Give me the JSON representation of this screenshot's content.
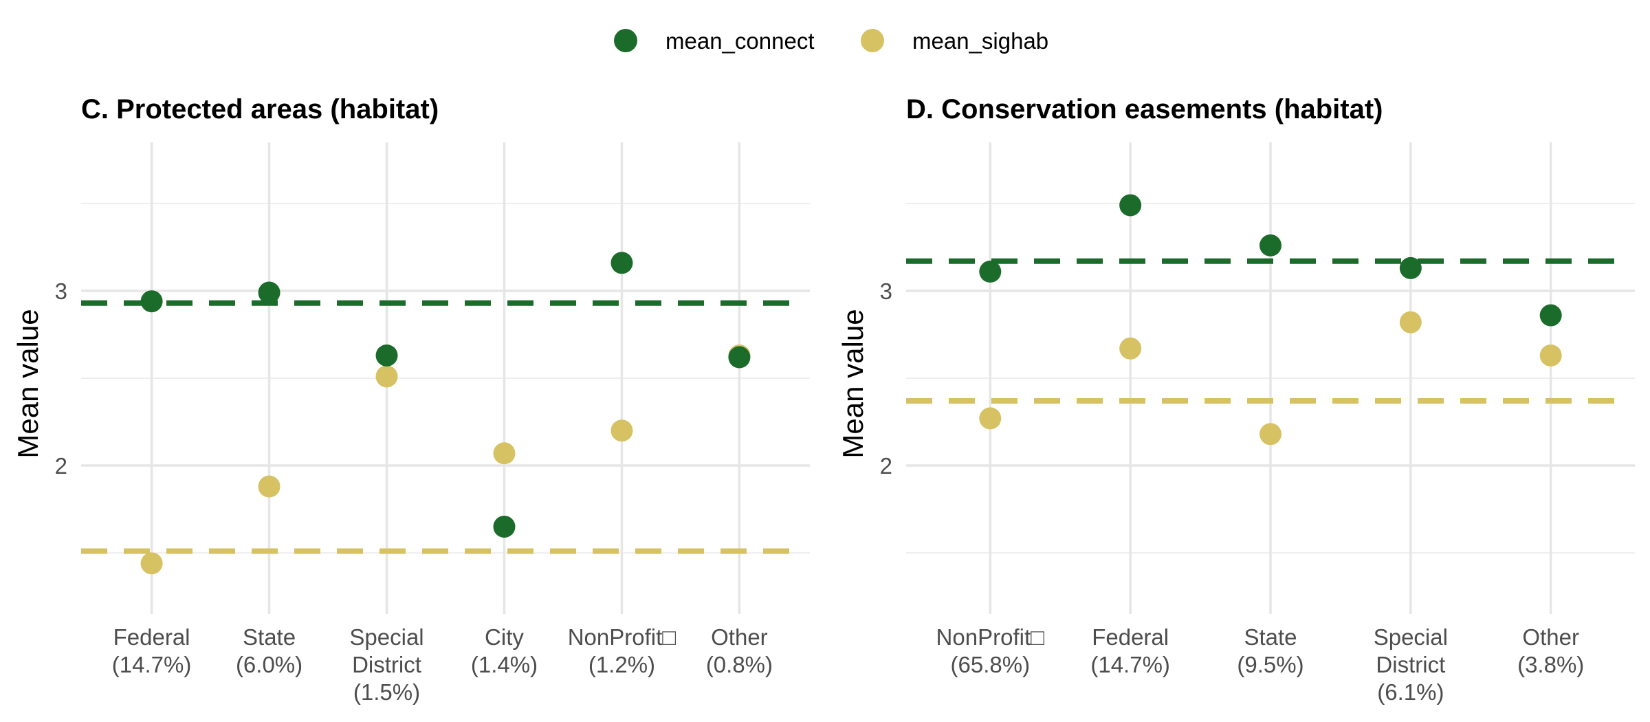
{
  "colors": {
    "mean_connect": "#1b6b2a",
    "mean_sighab": "#d6c263"
  },
  "legend": {
    "items": [
      {
        "key": "mean_connect",
        "label": "mean_connect"
      },
      {
        "key": "mean_sighab",
        "label": "mean_sighab"
      }
    ],
    "placement": "top"
  },
  "chart_data": [
    {
      "type": "scatter",
      "title": "C. Protected areas (habitat)",
      "ylabel": "Mean value",
      "xlabel": "",
      "ylim": [
        1.15,
        3.85
      ],
      "yticks": [
        2,
        3
      ],
      "grid": true,
      "categories": [
        [
          "Federal",
          "(14.7%)"
        ],
        [
          "State",
          "(6.0%)"
        ],
        [
          "Special",
          "District",
          "(1.5%)"
        ],
        [
          "City",
          "(1.4%)"
        ],
        [
          "NonProfit□",
          "(1.2%)"
        ],
        [
          "Other",
          "(0.8%)"
        ]
      ],
      "series": [
        {
          "name": "mean_sighab",
          "key": "mean_sighab",
          "values": [
            1.44,
            1.88,
            2.51,
            2.07,
            2.2,
            2.63
          ]
        },
        {
          "name": "mean_connect",
          "key": "mean_connect",
          "values": [
            2.94,
            2.99,
            2.63,
            1.65,
            3.16,
            2.62
          ]
        }
      ],
      "reference_lines": [
        {
          "key": "mean_connect",
          "value": 2.93
        },
        {
          "key": "mean_sighab",
          "value": 1.51
        }
      ]
    },
    {
      "type": "scatter",
      "title": "D. Conservation easements (habitat)",
      "ylabel": "Mean value",
      "xlabel": "",
      "ylim": [
        1.15,
        3.85
      ],
      "yticks": [
        2,
        3
      ],
      "grid": true,
      "categories": [
        [
          "NonProfit□",
          "(65.8%)"
        ],
        [
          "Federal",
          "(14.7%)"
        ],
        [
          "State",
          "(9.5%)"
        ],
        [
          "Special",
          "District",
          "(6.1%)"
        ],
        [
          "Other",
          "(3.8%)"
        ]
      ],
      "series": [
        {
          "name": "mean_sighab",
          "key": "mean_sighab",
          "values": [
            2.27,
            2.67,
            2.18,
            2.82,
            2.63
          ]
        },
        {
          "name": "mean_connect",
          "key": "mean_connect",
          "values": [
            3.11,
            3.49,
            3.26,
            3.13,
            2.86
          ]
        }
      ],
      "reference_lines": [
        {
          "key": "mean_connect",
          "value": 3.17
        },
        {
          "key": "mean_sighab",
          "value": 2.37
        }
      ]
    }
  ]
}
